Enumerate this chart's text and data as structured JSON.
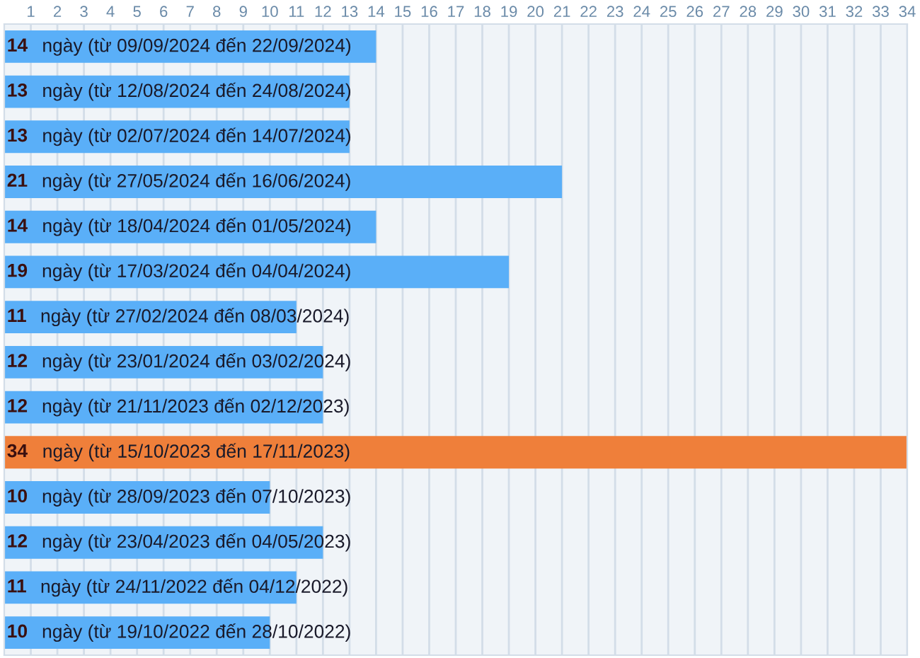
{
  "chart_data": {
    "type": "bar",
    "orientation": "horizontal",
    "data_labels": true,
    "categories": [
      "ngày (từ 09/09/2024 đến 22/09/2024)",
      "ngày (từ 12/08/2024 đến 24/08/2024)",
      "ngày (từ 02/07/2024 đến 14/07/2024)",
      "ngày (từ 27/05/2024 đến 16/06/2024)",
      "ngày (từ 18/04/2024 đến 01/05/2024)",
      "ngày (từ 17/03/2024 đến 04/04/2024)",
      "ngày (từ 27/02/2024 đến 08/03/2024)",
      "ngày (từ 23/01/2024 đến 03/02/2024)",
      "ngày (từ 21/11/2023 đến 02/12/2023)",
      "ngày (từ 15/10/2023 đến 17/11/2023)",
      "ngày (từ 28/09/2023 đến 07/10/2023)",
      "ngày (từ 23/04/2023 đến 04/05/2023)",
      "ngày (từ 24/11/2022 đến 04/12/2022)",
      "ngày (từ 19/10/2022 đến 28/10/2022)"
    ],
    "values": [
      14,
      13,
      13,
      21,
      14,
      19,
      11,
      12,
      12,
      34,
      10,
      12,
      11,
      10
    ],
    "colors": [
      "#5aaff8",
      "#5aaff8",
      "#5aaff8",
      "#5aaff8",
      "#5aaff8",
      "#5aaff8",
      "#5aaff8",
      "#5aaff8",
      "#5aaff8",
      "#ef7f3a",
      "#5aaff8",
      "#5aaff8",
      "#5aaff8",
      "#5aaff8"
    ],
    "xlim": [
      0,
      34
    ],
    "xticks": [
      1,
      2,
      3,
      4,
      5,
      6,
      7,
      8,
      9,
      10,
      11,
      12,
      13,
      14,
      15,
      16,
      17,
      18,
      19,
      20,
      21,
      22,
      23,
      24,
      25,
      26,
      27,
      28,
      29,
      30,
      31,
      32,
      33,
      34
    ],
    "grid": "x"
  }
}
